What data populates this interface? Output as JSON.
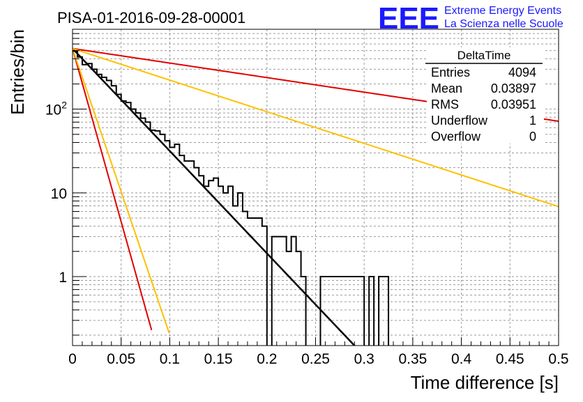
{
  "logo": {
    "mark": "EEE",
    "line1": "Extreme Energy Events",
    "line2": "La Scienza nelle Scuole",
    "color": "#1a1aff"
  },
  "chart_data": {
    "type": "histogram",
    "title": "PISA-01-2016-09-28-00001",
    "xlabel": "Time difference [s]",
    "ylabel": "Entries/bin",
    "xlim": [
      0,
      0.5
    ],
    "ylim": [
      0.15,
      900
    ],
    "y_scale": "log",
    "grid": true,
    "x_ticks": [
      "0",
      "0.05",
      "0.1",
      "0.15",
      "0.2",
      "0.25",
      "0.3",
      "0.35",
      "0.4",
      "0.45",
      "0.5"
    ],
    "y_ticks": [
      {
        "value": 1,
        "label": "1"
      },
      {
        "value": 10,
        "label": "10"
      },
      {
        "value": 100,
        "label": "10²"
      }
    ],
    "stats": {
      "name": "DeltaTime",
      "rows": [
        {
          "label": "Entries",
          "value": "4094"
        },
        {
          "label": "Mean",
          "value": "0.03897"
        },
        {
          "label": "RMS",
          "value": "0.03951"
        },
        {
          "label": "Underflow",
          "value": "1"
        },
        {
          "label": "Overflow",
          "value": "0"
        }
      ]
    },
    "histogram": {
      "bin_width": 0.005,
      "color": "#000000",
      "counts": [
        495,
        420,
        340,
        350,
        300,
        260,
        240,
        220,
        190,
        150,
        125,
        120,
        100,
        90,
        78,
        70,
        56,
        55,
        50,
        42,
        35,
        38,
        28,
        24,
        24,
        20,
        16,
        12,
        14,
        15,
        12,
        10,
        12,
        7,
        10,
        6,
        5,
        5,
        5,
        4,
        0,
        3,
        3,
        3,
        2,
        3,
        2,
        1,
        0,
        0,
        0,
        1,
        1,
        1,
        1,
        1,
        1,
        1,
        1,
        1,
        0,
        1,
        0,
        1,
        1,
        0
      ],
      "x_start": 0
    },
    "fits": [
      {
        "color": "#000000",
        "A": 530,
        "tau": 0.0355,
        "x_range": [
          0,
          0.3166
        ]
      },
      {
        "color": "#e00000",
        "A": 530,
        "tau": 0.25,
        "x_range": [
          0,
          0.5
        ]
      },
      {
        "color": "#ffc000",
        "A": 530,
        "tau": 0.115,
        "x_range": [
          0,
          0.5
        ]
      },
      {
        "color": "#e00000",
        "A": 530,
        "tau": 0.0105,
        "x_range": [
          0,
          0.0813
        ]
      },
      {
        "color": "#ffc000",
        "A": 530,
        "tau": 0.0127,
        "x_range": [
          0,
          0.0995
        ]
      }
    ]
  }
}
